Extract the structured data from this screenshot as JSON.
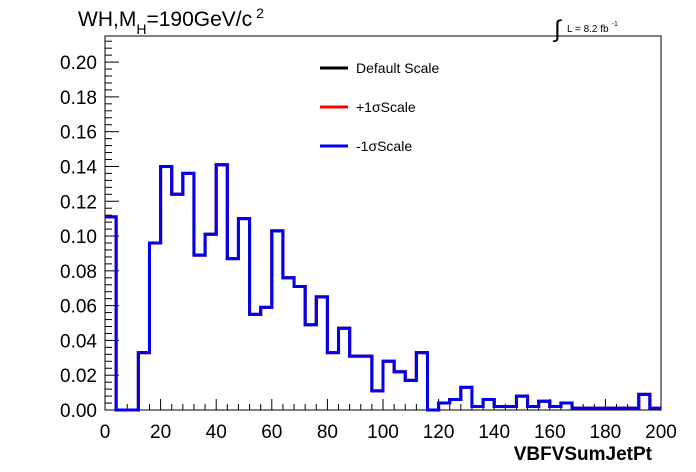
{
  "title": {
    "prefix": "WH,M",
    "subscript": "H",
    "suffix": "=190GeV/c",
    "superscript": "2"
  },
  "lumi": {
    "integral_symbol": "∫",
    "text": "L = 8.2 fb",
    "superscript": "-1"
  },
  "chart_data": {
    "type": "line",
    "style": "step-histogram",
    "xlabel": "VBFVSumJetPt",
    "ylabel": "",
    "xlim": [
      0,
      200
    ],
    "ylim": [
      0,
      0.215
    ],
    "bin_width": 4,
    "x_ticks": [
      0,
      20,
      40,
      60,
      80,
      100,
      120,
      140,
      160,
      180,
      200
    ],
    "x_tick_labels": [
      "0",
      "20",
      "40",
      "60",
      "80",
      "100",
      "120",
      "140",
      "160",
      "180",
      "200"
    ],
    "y_ticks": [
      0,
      0.02,
      0.04,
      0.06,
      0.08,
      0.1,
      0.12,
      0.14,
      0.16,
      0.18,
      0.2
    ],
    "y_tick_labels": [
      "0.00",
      "0.02",
      "0.04",
      "0.06",
      "0.08",
      "0.10",
      "0.12",
      "0.14",
      "0.16",
      "0.18",
      "0.20"
    ],
    "legend_position": "top-center",
    "series": [
      {
        "name": "Default Scale",
        "color": "#000000",
        "values": [
          0.111,
          0.0,
          0.0,
          0.033,
          0.096,
          0.14,
          0.124,
          0.136,
          0.089,
          0.101,
          0.141,
          0.087,
          0.11,
          0.055,
          0.059,
          0.103,
          0.076,
          0.071,
          0.049,
          0.065,
          0.033,
          0.047,
          0.031,
          0.031,
          0.011,
          0.028,
          0.022,
          0.017,
          0.033,
          0.0,
          0.004,
          0.006,
          0.013,
          0.002,
          0.006,
          0.002,
          0.002,
          0.008,
          0.002,
          0.005,
          0.002,
          0.004,
          0.001,
          0.001,
          0.001,
          0.001,
          0.001,
          0.001,
          0.009,
          0.001
        ]
      },
      {
        "name": "+1σScale",
        "color": "#ff0000",
        "values": [
          0.111,
          0.0,
          0.0,
          0.033,
          0.096,
          0.14,
          0.124,
          0.136,
          0.089,
          0.101,
          0.141,
          0.087,
          0.11,
          0.055,
          0.059,
          0.103,
          0.076,
          0.071,
          0.049,
          0.065,
          0.033,
          0.047,
          0.031,
          0.031,
          0.011,
          0.028,
          0.022,
          0.017,
          0.033,
          0.0,
          0.004,
          0.006,
          0.013,
          0.002,
          0.006,
          0.002,
          0.002,
          0.008,
          0.002,
          0.005,
          0.002,
          0.004,
          0.001,
          0.001,
          0.001,
          0.001,
          0.001,
          0.001,
          0.009,
          0.001
        ]
      },
      {
        "name": "-1σScale",
        "color": "#0000ee",
        "values": [
          0.111,
          0.0,
          0.0,
          0.033,
          0.096,
          0.14,
          0.124,
          0.136,
          0.089,
          0.101,
          0.141,
          0.087,
          0.11,
          0.055,
          0.059,
          0.103,
          0.076,
          0.071,
          0.049,
          0.065,
          0.033,
          0.047,
          0.031,
          0.031,
          0.011,
          0.028,
          0.022,
          0.017,
          0.033,
          0.0,
          0.004,
          0.006,
          0.013,
          0.002,
          0.006,
          0.002,
          0.002,
          0.008,
          0.002,
          0.005,
          0.002,
          0.004,
          0.001,
          0.001,
          0.001,
          0.001,
          0.001,
          0.001,
          0.009,
          0.001
        ]
      }
    ]
  }
}
